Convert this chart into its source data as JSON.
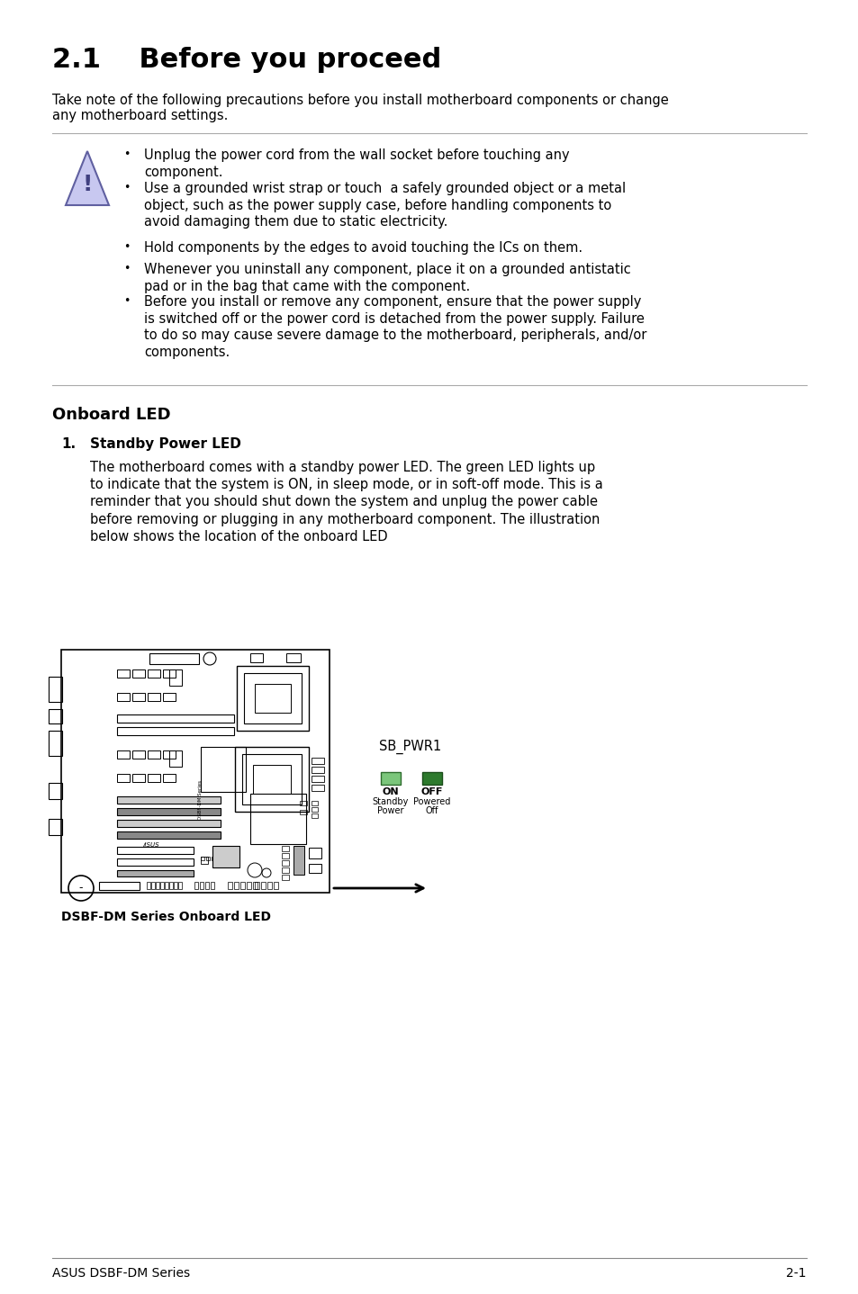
{
  "title": "2.1    Before you proceed",
  "subtitle": "Take note of the following precautions before you install motherboard components or change\nany motherboard settings.",
  "warning_bullets": [
    "Unplug the power cord from the wall socket before touching any component.",
    "Use a grounded wrist strap or touch  a safely grounded object or a metal object, such as the power supply case, before handling components to avoid damaging them due to static electricity.",
    "Hold components by the edges to avoid touching the ICs on them.",
    "Whenever you uninstall any component, place it on a grounded antistatic pad or in the bag that came with the component.",
    "Before you install or remove any component, ensure that the power supply is switched off or the power cord is detached from the power supply. Failure to do so may cause severe damage to the motherboard, peripherals, and/or components."
  ],
  "section_title": "Onboard LED",
  "subsection_num": "1.",
  "subsection_title": "Standby Power LED",
  "body_text": "The motherboard comes with a standby power LED. The green LED lights up\nto indicate that the system is ON, in sleep mode, or in soft-off mode. This is a\nreminder that you should shut down the system and unplug the power cable\nbefore removing or plugging in any motherboard component. The illustration\nbelow shows the location of the onboard LED",
  "diagram_label": "DSBF-DM Series Onboard LED",
  "sb_label": "SB_PWR1",
  "footer_left": "ASUS DSBF-DM Series",
  "footer_right": "2-1",
  "bg_color": "#ffffff",
  "text_color": "#000000",
  "title_fontsize": 22,
  "body_fontsize": 11,
  "section_fontsize": 13,
  "footer_fontsize": 10,
  "icon_fill": "#c8c8f0",
  "icon_edge": "#6060a0",
  "led_on_fill": "#7bc67b",
  "led_on_edge": "#2d6b2d",
  "led_off_fill": "#2d7a2d",
  "led_off_edge": "#1a4d1a"
}
